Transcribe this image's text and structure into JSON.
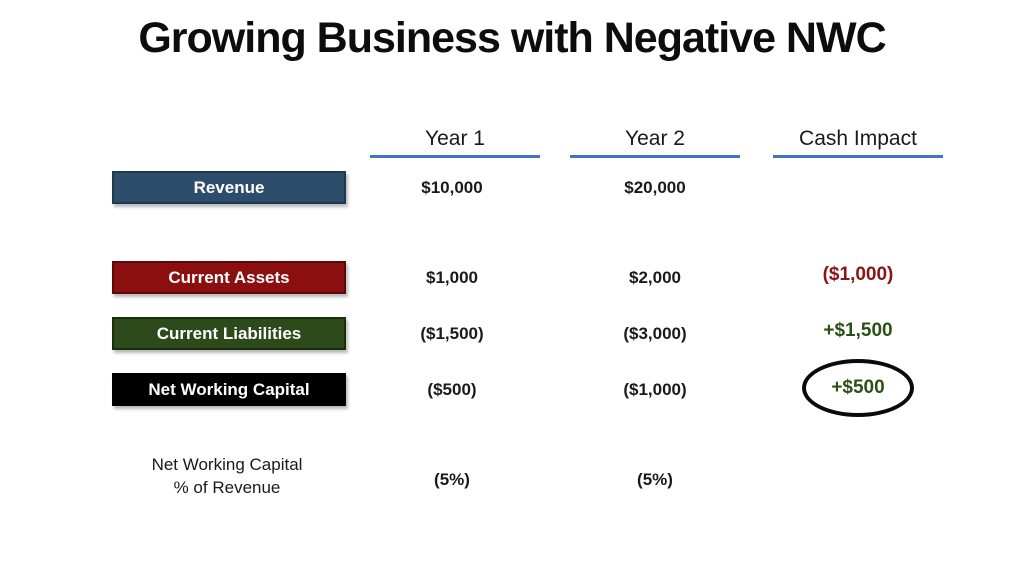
{
  "slide": {
    "title": "Growing Business with Negative NWC"
  },
  "table": {
    "headers": {
      "year1": "Year 1",
      "year2": "Year 2",
      "cash_impact": "Cash Impact"
    },
    "rows": {
      "revenue": {
        "label": "Revenue",
        "year1": "$10,000",
        "year2": "$20,000"
      },
      "current_assets": {
        "label": "Current Assets",
        "year1": "$1,000",
        "year2": "$2,000",
        "cash_impact": "($1,000)"
      },
      "current_liabilities": {
        "label": "Current Liabilities",
        "year1": "($1,500)",
        "year2": "($3,000)",
        "cash_impact": "+$1,500"
      },
      "net_working_capital": {
        "label": "Net Working Capital",
        "year1": "($500)",
        "year2": "($1,000)",
        "cash_impact": "+$500"
      },
      "nwc_pct_of_revenue": {
        "label_line1": "Net Working Capital",
        "label_line2": "% of Revenue",
        "year1": "(5%)",
        "year2": "(5%)"
      }
    }
  },
  "annotations": {
    "circled_value_note": "+$500 circled in Cash Impact column"
  },
  "colors": {
    "revenue_box": "#2E4D6B",
    "current_assets_box": "#8B0F0F",
    "current_liabilities_box": "#2D4A1A",
    "nwc_box": "#000000",
    "header_underline": "#4472C4",
    "negative_cash": "#8B1414",
    "positive_cash": "#2D5016"
  }
}
